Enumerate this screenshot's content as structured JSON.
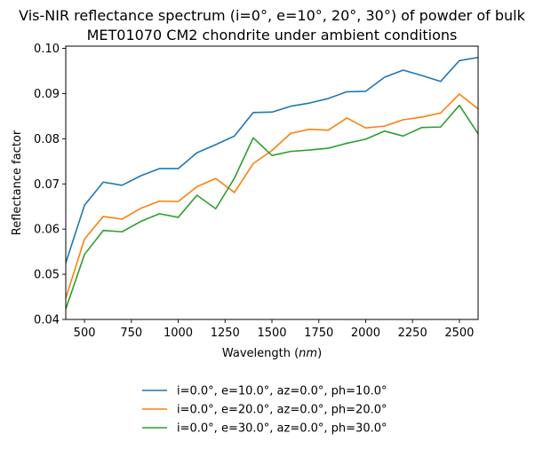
{
  "chart_data": {
    "type": "line",
    "title_lines": [
      "Vis-NIR reflectance spectrum (i=0°, e=10°, 20°, 30°) of powder of bulk",
      "MET01070 CM2 chondrite under ambient conditions"
    ],
    "xlabel_prefix": "Wavelength (",
    "xlabel_unit": "nm",
    "xlabel_suffix": ")",
    "ylabel": "Reflectance factor",
    "xlim": [
      400,
      2600
    ],
    "ylim": [
      0.04,
      0.1005
    ],
    "xticks": [
      500,
      750,
      1000,
      1250,
      1500,
      1750,
      2000,
      2250,
      2500
    ],
    "yticks": [
      0.04,
      0.05,
      0.06,
      0.07,
      0.08,
      0.09,
      0.1
    ],
    "ytick_labels": [
      "0.04",
      "0.05",
      "0.06",
      "0.07",
      "0.08",
      "0.09",
      "0.10"
    ],
    "grid": false,
    "legend_position": "below",
    "x": [
      400,
      500,
      600,
      700,
      800,
      900,
      1000,
      1100,
      1200,
      1300,
      1400,
      1500,
      1600,
      1700,
      1800,
      1900,
      2000,
      2100,
      2200,
      2300,
      2400,
      2500,
      2600
    ],
    "series": [
      {
        "name": "i=0.0°, e=10.0°, az=0.0°, ph=10.0°",
        "color": "#1f77b4",
        "values": [
          0.0525,
          0.0653,
          0.0704,
          0.0697,
          0.0718,
          0.0734,
          0.0734,
          0.0769,
          0.0787,
          0.0806,
          0.0858,
          0.0859,
          0.0872,
          0.0879,
          0.0889,
          0.0904,
          0.0905,
          0.0936,
          0.0952,
          0.094,
          0.0927,
          0.0973,
          0.098
        ]
      },
      {
        "name": "i=0.0°, e=20.0°, az=0.0°, ph=20.0°",
        "color": "#ff7f0e",
        "values": [
          0.0447,
          0.0578,
          0.0628,
          0.0622,
          0.0646,
          0.0662,
          0.0661,
          0.0694,
          0.0712,
          0.0681,
          0.0745,
          0.0774,
          0.0812,
          0.0821,
          0.0819,
          0.0846,
          0.0824,
          0.0828,
          0.0842,
          0.0848,
          0.0857,
          0.0899,
          0.0866
        ]
      },
      {
        "name": "i=0.0°, e=30.0°, az=0.0°, ph=30.0°",
        "color": "#2ca02c",
        "values": [
          0.0423,
          0.0544,
          0.0597,
          0.0594,
          0.0617,
          0.0634,
          0.0626,
          0.0675,
          0.0645,
          0.0713,
          0.0802,
          0.0763,
          0.0772,
          0.0775,
          0.0779,
          0.079,
          0.0799,
          0.0817,
          0.0806,
          0.0825,
          0.0826,
          0.0874,
          0.0811
        ]
      }
    ]
  }
}
